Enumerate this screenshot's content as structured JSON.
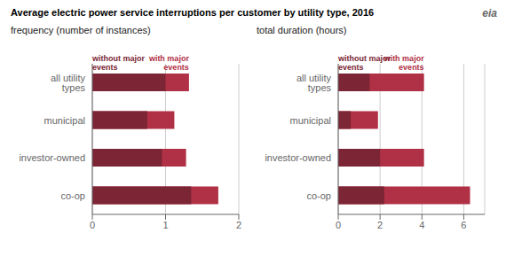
{
  "title": "Average electric power service interruptions per customer by utility type, 2016",
  "annotations": [
    "eia"
  ],
  "chart_data": [
    {
      "type": "bar",
      "orientation": "horizontal",
      "title": "frequency (number of instances)",
      "categories": [
        "all utility types",
        "municipal",
        "investor-owned",
        "co-op"
      ],
      "series": [
        {
          "name": "with major\nevents",
          "color": "#b03045",
          "values": [
            1.32,
            1.12,
            1.28,
            1.72
          ]
        },
        {
          "name": "without major\nevents",
          "color": "#7b2535",
          "values": [
            1.0,
            0.75,
            0.95,
            1.35
          ]
        }
      ],
      "xlim": [
        0,
        2
      ],
      "xticks": [
        0,
        1,
        2
      ],
      "grid": true
    },
    {
      "type": "bar",
      "orientation": "horizontal",
      "title": "total duration (hours)",
      "categories": [
        "all utility types",
        "municipal",
        "investor-owned",
        "co-op"
      ],
      "series": [
        {
          "name": "with major\nevents",
          "color": "#b03045",
          "values": [
            4.1,
            1.9,
            4.1,
            6.3
          ]
        },
        {
          "name": "without major\nevents",
          "color": "#7b2535",
          "values": [
            1.5,
            0.6,
            2.0,
            2.2
          ]
        }
      ],
      "xlim": [
        0,
        7
      ],
      "xticks": [
        0,
        2,
        4,
        6
      ],
      "grid": true
    }
  ]
}
